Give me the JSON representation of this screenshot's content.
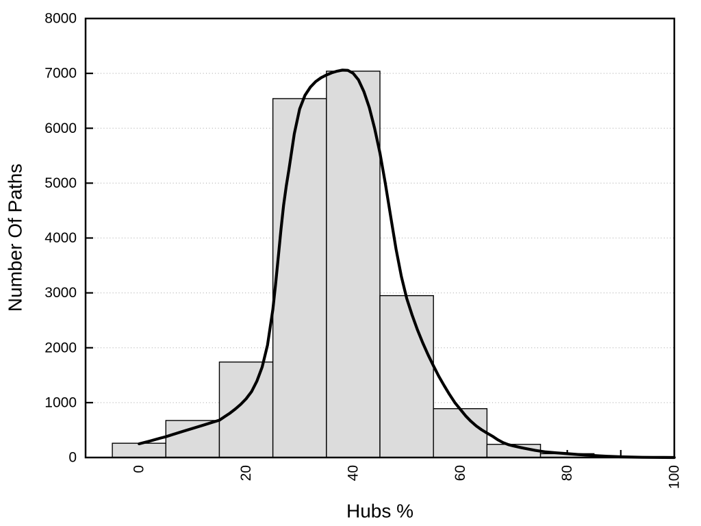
{
  "chart_data": {
    "type": "bar",
    "subtype": "histogram-with-density-curve",
    "title": "",
    "xlabel": "Hubs %",
    "ylabel": "Number Of Paths",
    "xlim": [
      -10,
      100
    ],
    "ylim": [
      0,
      8000
    ],
    "x_tick_labels": [
      "0",
      "20",
      "40",
      "60",
      "80",
      "100"
    ],
    "x_tick_values": [
      0,
      20,
      40,
      60,
      80,
      100
    ],
    "x_minor_tick_values": [
      0,
      10,
      20,
      30,
      40,
      50,
      60,
      70,
      80,
      90,
      100
    ],
    "y_tick_labels": [
      "0",
      "1000",
      "2000",
      "3000",
      "4000",
      "5000",
      "6000",
      "7000",
      "8000"
    ],
    "y_tick_values": [
      0,
      1000,
      2000,
      3000,
      4000,
      5000,
      6000,
      7000,
      8000
    ],
    "grid": {
      "horizontal": true,
      "vertical": false,
      "style": "dotted"
    },
    "legend": "none",
    "histogram": {
      "bin_width": 10,
      "bin_edges": [
        -5,
        5,
        15,
        25,
        35,
        45,
        55,
        65,
        75,
        85
      ],
      "counts": [
        260,
        675,
        1740,
        6540,
        7040,
        2950,
        890,
        240,
        70
      ]
    },
    "density_curve": {
      "points": [
        [
          0,
          250
        ],
        [
          2,
          300
        ],
        [
          4,
          355
        ],
        [
          5,
          380
        ],
        [
          6,
          410
        ],
        [
          8,
          470
        ],
        [
          10,
          530
        ],
        [
          12,
          590
        ],
        [
          14,
          650
        ],
        [
          15,
          680
        ],
        [
          16,
          745
        ],
        [
          17,
          810
        ],
        [
          18,
          885
        ],
        [
          19,
          970
        ],
        [
          20,
          1070
        ],
        [
          21,
          1200
        ],
        [
          22,
          1390
        ],
        [
          23,
          1650
        ],
        [
          24,
          2050
        ],
        [
          25,
          2700
        ],
        [
          25.5,
          3150
        ],
        [
          26,
          3650
        ],
        [
          26.5,
          4150
        ],
        [
          27,
          4600
        ],
        [
          27.5,
          4950
        ],
        [
          28,
          5250
        ],
        [
          29,
          5900
        ],
        [
          30,
          6350
        ],
        [
          31,
          6600
        ],
        [
          32,
          6750
        ],
        [
          33,
          6850
        ],
        [
          34,
          6920
        ],
        [
          35,
          6970
        ],
        [
          36,
          7010
        ],
        [
          37,
          7040
        ],
        [
          38,
          7060
        ],
        [
          39,
          7055
        ],
        [
          40,
          7000
        ],
        [
          41,
          6880
        ],
        [
          42,
          6670
        ],
        [
          43,
          6380
        ],
        [
          44,
          6000
        ],
        [
          45,
          5550
        ],
        [
          46,
          5000
        ],
        [
          47,
          4400
        ],
        [
          48,
          3800
        ],
        [
          49,
          3300
        ],
        [
          50,
          2900
        ],
        [
          51,
          2600
        ],
        [
          52,
          2330
        ],
        [
          53,
          2090
        ],
        [
          54,
          1870
        ],
        [
          55,
          1670
        ],
        [
          56,
          1480
        ],
        [
          57,
          1310
        ],
        [
          58,
          1150
        ],
        [
          59,
          1000
        ],
        [
          60,
          880
        ],
        [
          61,
          760
        ],
        [
          62,
          660
        ],
        [
          63,
          575
        ],
        [
          64,
          505
        ],
        [
          65,
          445
        ],
        [
          66,
          390
        ],
        [
          67,
          325
        ],
        [
          68,
          272
        ],
        [
          69,
          235
        ],
        [
          70,
          210
        ],
        [
          71,
          188
        ],
        [
          72,
          167
        ],
        [
          74,
          130
        ],
        [
          76,
          101
        ],
        [
          78,
          85
        ],
        [
          80,
          70
        ],
        [
          82,
          55
        ],
        [
          84,
          42
        ],
        [
          86,
          30
        ],
        [
          88,
          20
        ],
        [
          90,
          13
        ],
        [
          92,
          8
        ],
        [
          94,
          4
        ],
        [
          96,
          2
        ],
        [
          98,
          1
        ],
        [
          100,
          0
        ]
      ]
    },
    "colors": {
      "background": "#ffffff",
      "bar_fill": "#dcdcdc",
      "bar_edge": "#000000",
      "curve": "#000000",
      "grid": "#b3b3b3",
      "axis": "#000000",
      "text": "#000000"
    }
  }
}
